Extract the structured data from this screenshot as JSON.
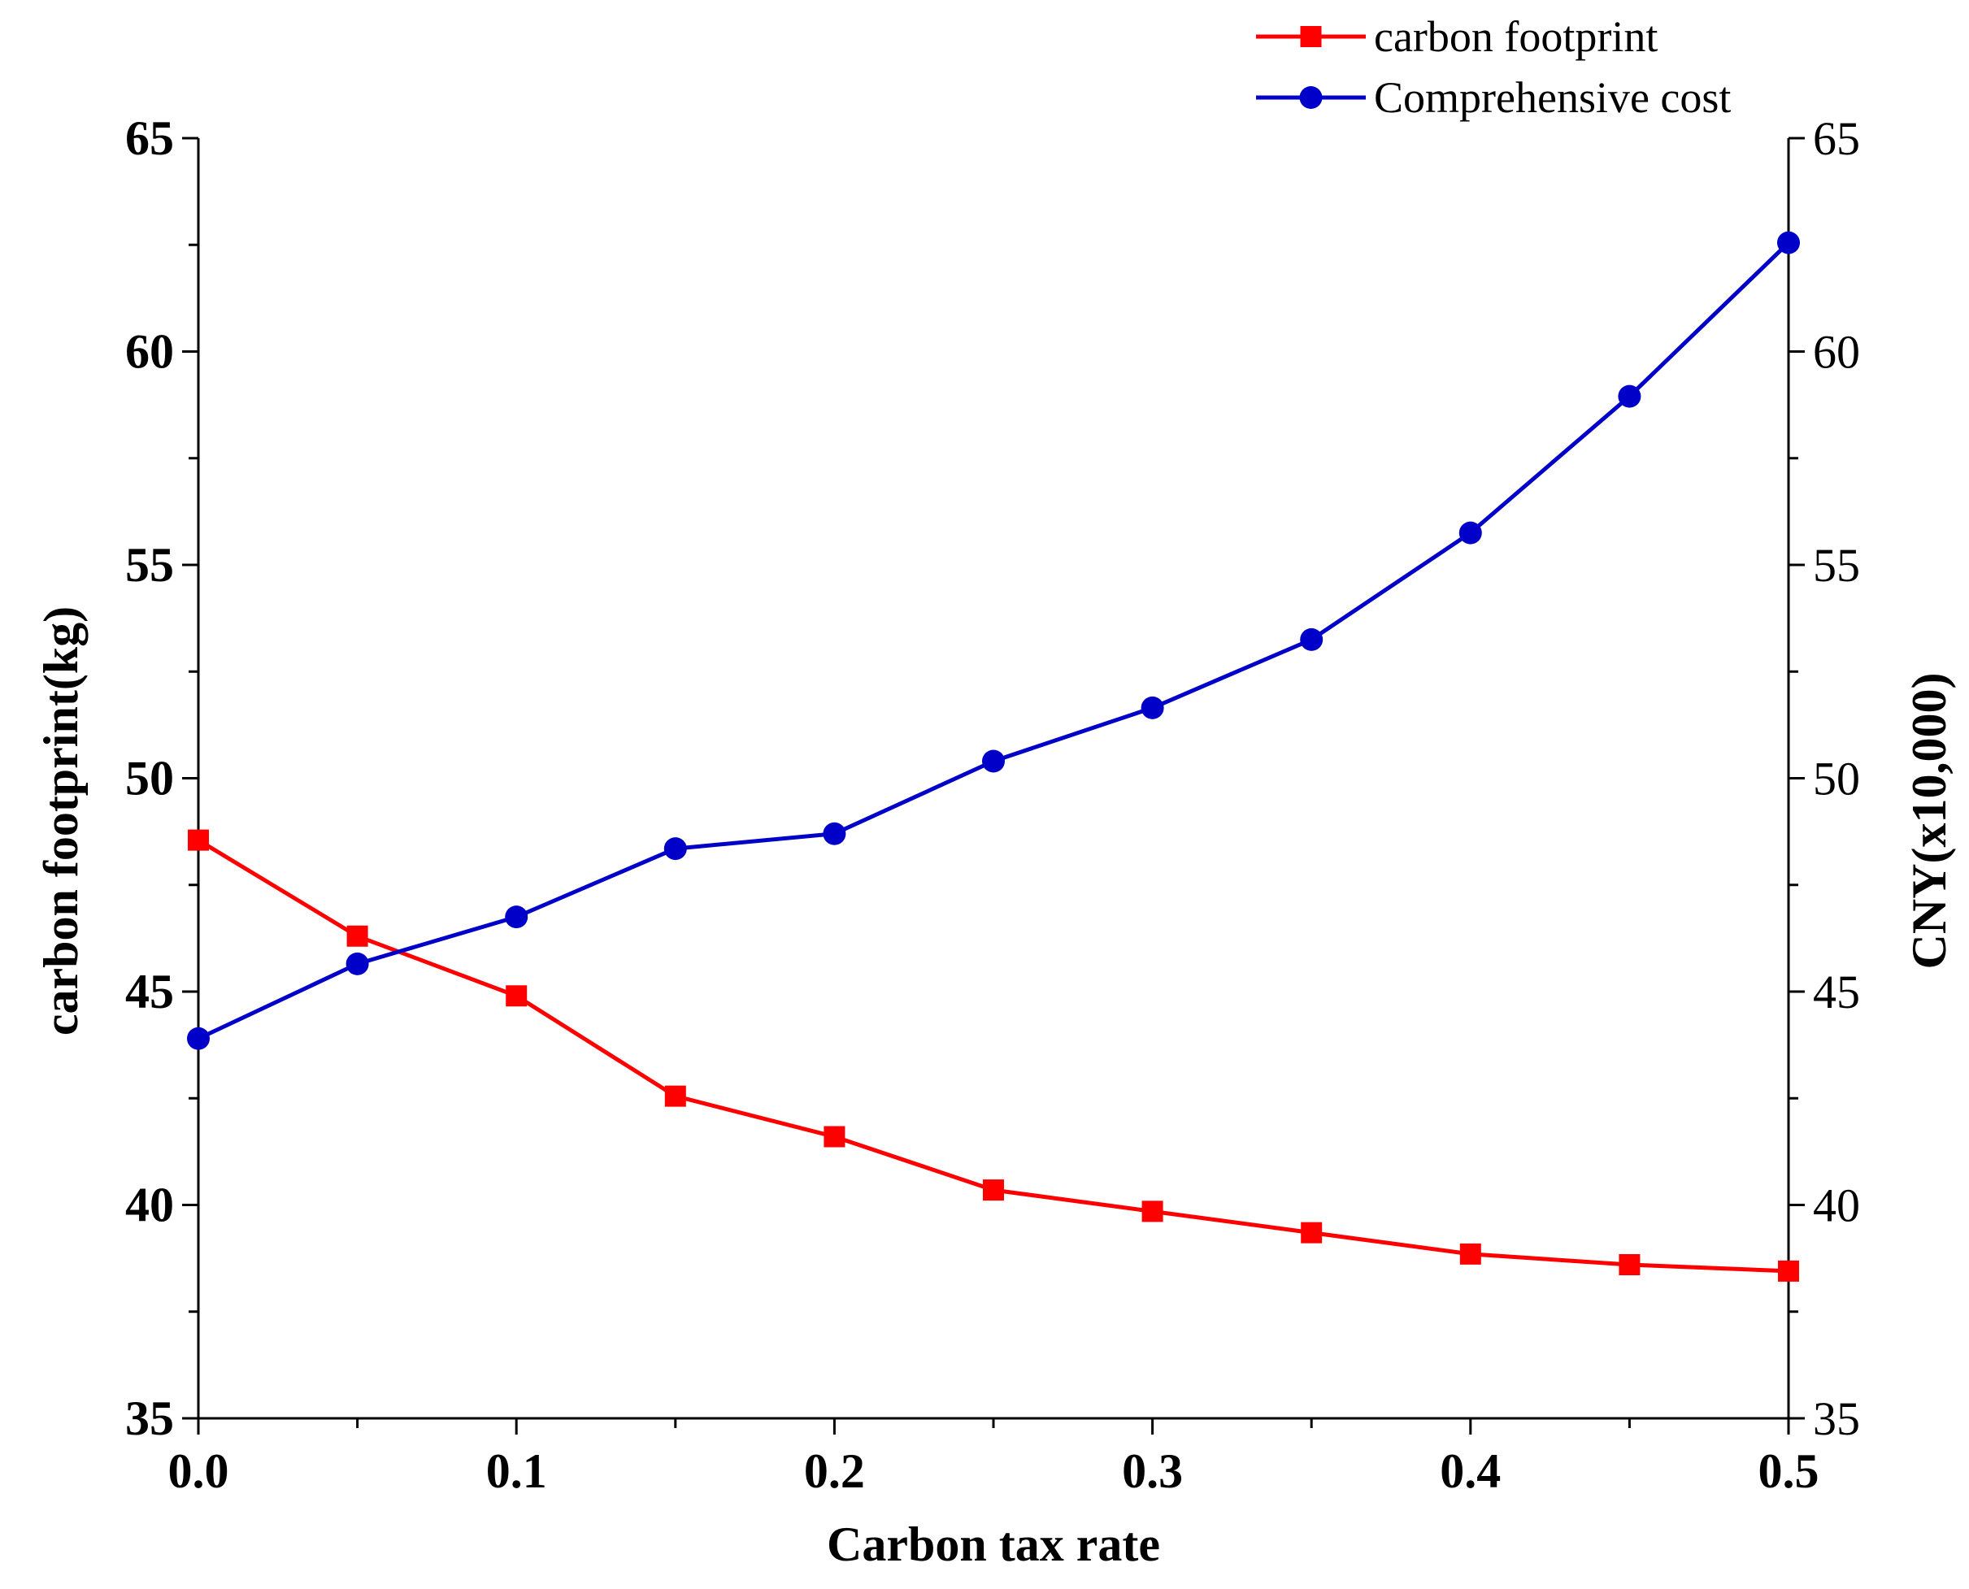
{
  "chart_data": {
    "type": "line",
    "xlabel": "Carbon tax rate",
    "ylabel_left": "carbon footprint(kg)",
    "ylabel_right": "CNY(x10,000)",
    "x": [
      0.0,
      0.05,
      0.1,
      0.15,
      0.2,
      0.25,
      0.3,
      0.35,
      0.4,
      0.45,
      0.5
    ],
    "xlim": [
      0.0,
      0.5
    ],
    "x_ticks": [
      0.0,
      0.1,
      0.2,
      0.3,
      0.4,
      0.5
    ],
    "x_tick_labels": [
      "0.0",
      "0.1",
      "0.2",
      "0.3",
      "0.4",
      "0.5"
    ],
    "ylim_left": [
      35,
      65
    ],
    "ylim_right": [
      35,
      65
    ],
    "y_ticks": [
      35,
      40,
      45,
      50,
      55,
      60,
      65
    ],
    "y_tick_labels": [
      "35",
      "40",
      "45",
      "50",
      "55",
      "60",
      "65"
    ],
    "grid": false,
    "legend_position": "top-right",
    "series": [
      {
        "name": "carbon footprint",
        "axis": "left",
        "color": "#ff0000",
        "marker": "square",
        "values": [
          48.55,
          46.3,
          44.9,
          42.55,
          41.6,
          40.35,
          39.85,
          39.35,
          38.85,
          38.6,
          38.45
        ]
      },
      {
        "name": "Comprehensive cost",
        "axis": "right",
        "color": "#0000c8",
        "marker": "circle",
        "values": [
          43.9,
          45.65,
          46.75,
          48.35,
          48.7,
          50.4,
          51.65,
          53.25,
          55.75,
          58.95,
          62.55
        ]
      }
    ]
  }
}
